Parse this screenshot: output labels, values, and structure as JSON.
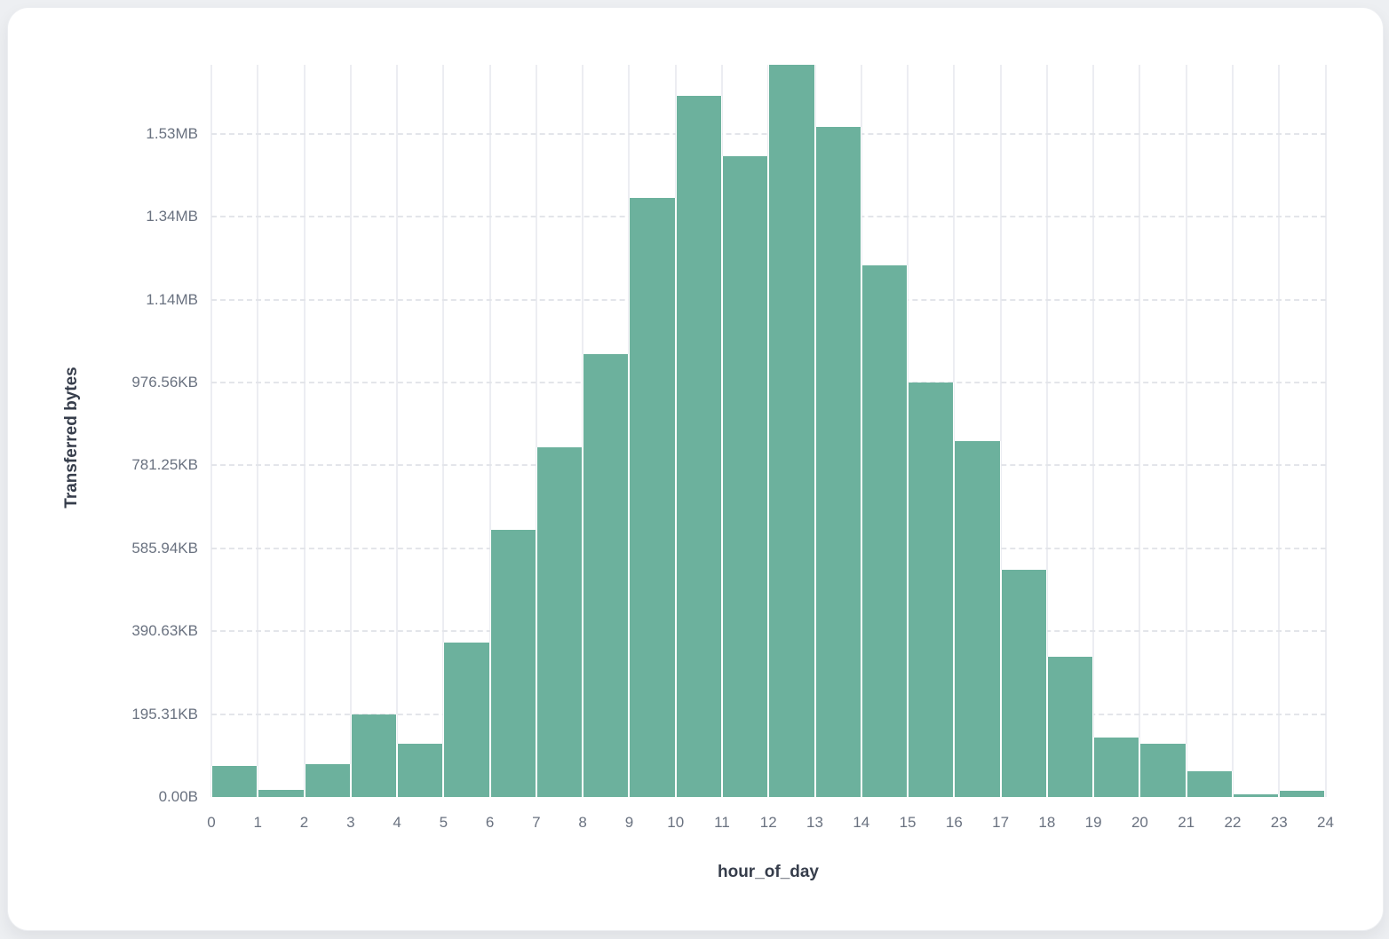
{
  "chart_data": {
    "type": "bar",
    "title": "",
    "xlabel": "hour_of_day",
    "ylabel": "Transferred bytes",
    "categories": [
      0,
      1,
      2,
      3,
      4,
      5,
      6,
      7,
      8,
      9,
      10,
      11,
      12,
      13,
      14,
      15,
      16,
      17,
      18,
      19,
      20,
      21,
      22,
      23
    ],
    "values_bytes": [
      75000,
      17000,
      79000,
      199000,
      128000,
      373000,
      645000,
      844000,
      1068000,
      1445000,
      1692000,
      1546000,
      1766000,
      1617000,
      1283000,
      1000000,
      859000,
      548000,
      338000,
      143500,
      128500,
      62000,
      6500,
      15000
    ],
    "x_tick_labels": [
      "0",
      "1",
      "2",
      "3",
      "4",
      "5",
      "6",
      "7",
      "8",
      "9",
      "10",
      "11",
      "12",
      "13",
      "14",
      "15",
      "16",
      "17",
      "18",
      "19",
      "20",
      "21",
      "22",
      "23",
      "24"
    ],
    "y_tick_labels": [
      "0.00B",
      "195.31KB",
      "390.63KB",
      "585.94KB",
      "781.25KB",
      "976.56KB",
      "1.14MB",
      "1.34MB",
      "1.53MB"
    ],
    "y_tick_bytes": [
      0,
      200000,
      400000,
      600000,
      800000,
      1000000,
      1200000,
      1400000,
      1600000
    ],
    "ylim": [
      0,
      1766600
    ],
    "grid": "vertical-solid, horizontal-dashed",
    "legend_position": "none"
  },
  "colors": {
    "bar_fill": "#6cb19d",
    "bar_stroke": "#ffffff",
    "vertical_gridline": "#ecedf2",
    "horizontal_gridline": "#e3e5ea",
    "tick_text": "#6a7280",
    "axis_title_text": "#363d4b",
    "card_background": "#ffffff",
    "page_background": "#edeff2"
  }
}
